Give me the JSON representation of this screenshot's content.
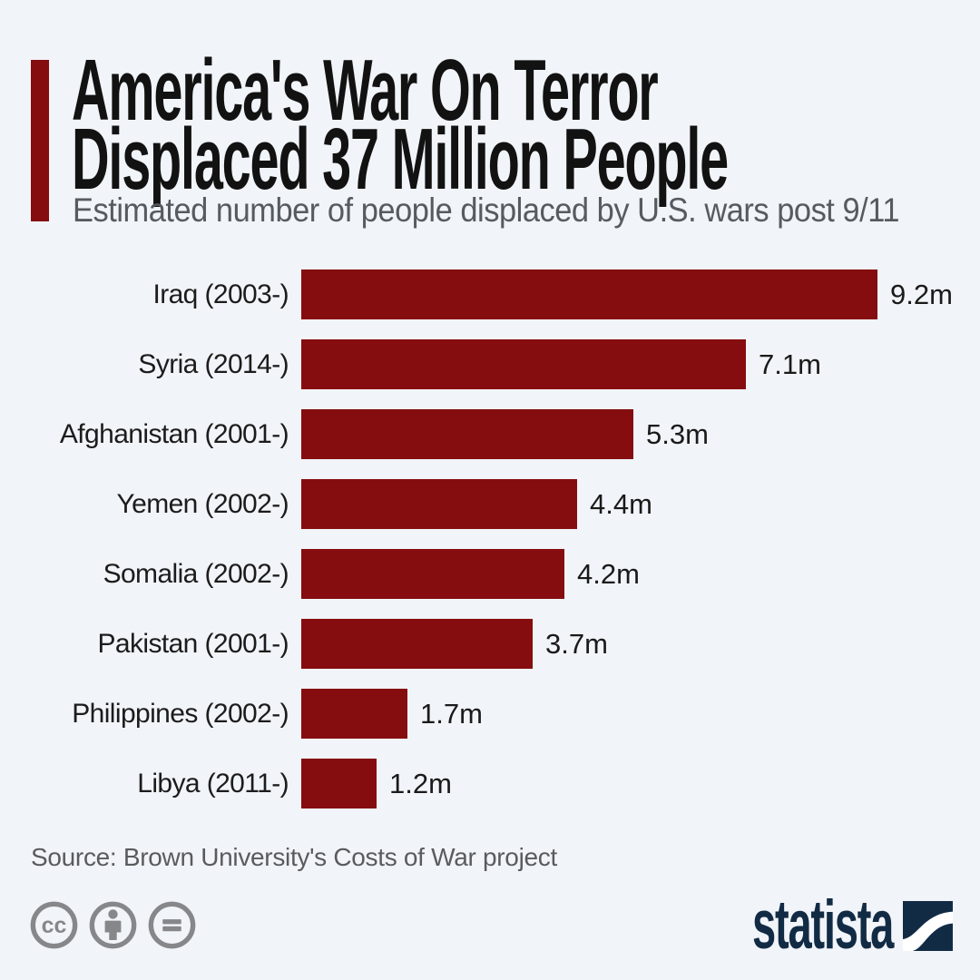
{
  "page": {
    "background_color": "#f1f4f8"
  },
  "header": {
    "title_line1": "America's War On Terror",
    "title_line2": "Displaced 37 Million People",
    "subtitle": "Estimated number of people displaced by U.S. wars post 9/11",
    "accent_color": "#850d0f"
  },
  "chart_data": {
    "type": "bar",
    "orientation": "horizontal",
    "title": "America's War On Terror Displaced 37 Million People",
    "subtitle": "Estimated number of people displaced by U.S. wars post 9/11",
    "unit": "millions of people",
    "categories": [
      "Iraq (2003-)",
      "Syria (2014-)",
      "Afghanistan (2001-)",
      "Yemen (2002-)",
      "Somalia (2002-)",
      "Pakistan (2001-)",
      "Philippines (2002-)",
      "Libya (2011-)"
    ],
    "values": [
      9.2,
      7.1,
      5.3,
      4.4,
      4.2,
      3.7,
      1.7,
      1.2
    ],
    "value_labels": [
      "9.2m",
      "7.1m",
      "5.3m",
      "4.4m",
      "4.2m",
      "3.7m",
      "1.7m",
      "1.2m"
    ],
    "xlim": [
      0,
      9.2
    ],
    "grid": false,
    "legend": false,
    "bar_color": "#850d0f",
    "label_color": "#1c1c1c",
    "value_color": "#1a1a1a"
  },
  "footer": {
    "source": "Source: Brown University's Costs of War project",
    "license": {
      "cc_glyph": "cc",
      "icons": [
        "cc-icon",
        "attribution-person-icon",
        "no-derivatives-equals-icon"
      ],
      "icon_color": "#85878a"
    },
    "brand": "statista",
    "brand_color": "#122b45"
  }
}
